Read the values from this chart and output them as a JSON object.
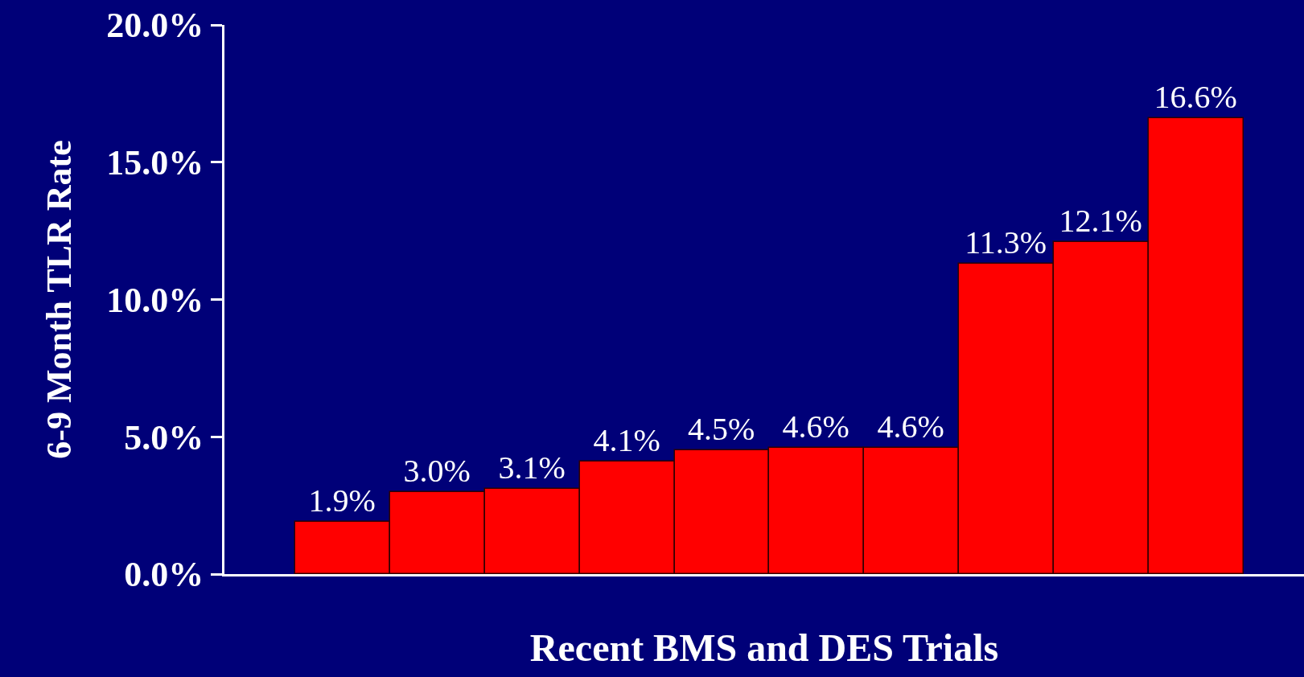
{
  "chart_data": {
    "type": "bar",
    "xlabel": "Recent BMS and DES Trials",
    "ylabel": "6-9 Month TLR Rate",
    "categories": [
      null,
      null,
      null,
      null,
      null,
      null,
      null,
      null,
      null,
      null
    ],
    "values": [
      1.9,
      3.0,
      3.1,
      4.1,
      4.5,
      4.6,
      4.6,
      11.3,
      12.1,
      16.6
    ],
    "value_labels": [
      "1.9%",
      "3.0%",
      "3.1%",
      "4.1%",
      "4.5%",
      "4.6%",
      "4.6%",
      "11.3%",
      "12.1%",
      "16.6%"
    ],
    "color": "#ff0000",
    "ylim": [
      0,
      20
    ],
    "yticks": [
      {
        "value": 0,
        "label": "0.0%"
      },
      {
        "value": 5,
        "label": "5.0%"
      },
      {
        "value": 10,
        "label": "10.0%"
      },
      {
        "value": 15,
        "label": "15.0%"
      },
      {
        "value": 20,
        "label": "20.0%"
      }
    ],
    "grid": false,
    "legend": false
  }
}
